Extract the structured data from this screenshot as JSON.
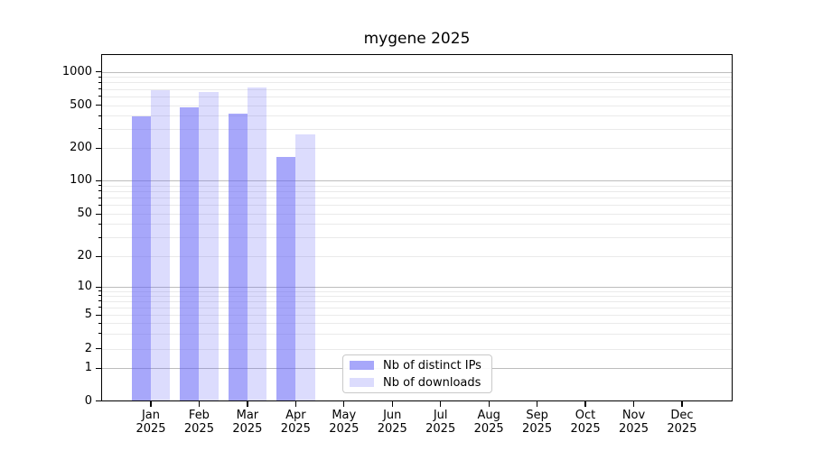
{
  "chart_data": {
    "type": "bar",
    "title": "mygene 2025",
    "categories": [
      "Jan 2025",
      "Feb 2025",
      "Mar 2025",
      "Apr 2025",
      "May 2025",
      "Jun 2025",
      "Jul 2025",
      "Aug 2025",
      "Sep 2025",
      "Oct 2025",
      "Nov 2025",
      "Dec 2025"
    ],
    "month_labels": [
      "Jan",
      "Feb",
      "Mar",
      "Apr",
      "May",
      "Jun",
      "Jul",
      "Aug",
      "Sep",
      "Oct",
      "Nov",
      "Dec"
    ],
    "year_label": "2025",
    "series": [
      {
        "name": "Nb of distinct IPs",
        "color": "rgba(95,95,245,0.55)",
        "values": [
          390,
          475,
          415,
          165,
          null,
          null,
          null,
          null,
          null,
          null,
          null,
          null
        ]
      },
      {
        "name": "Nb of downloads",
        "color": "rgba(95,95,245,0.22)",
        "values": [
          680,
          660,
          715,
          265,
          null,
          null,
          null,
          null,
          null,
          null,
          null,
          null
        ]
      }
    ],
    "y_axis": {
      "scale": "symlog",
      "ticks": [
        1000,
        500,
        200,
        100,
        50,
        20,
        10,
        5,
        2,
        1,
        0
      ],
      "major_grid_values": [
        1,
        10,
        100,
        1000
      ],
      "minor_grid_values": [
        2,
        3,
        4,
        5,
        6,
        7,
        8,
        9,
        20,
        30,
        40,
        50,
        60,
        70,
        80,
        90,
        200,
        300,
        400,
        500,
        600,
        700,
        800,
        900
      ],
      "ylim": [
        0,
        1400
      ]
    },
    "legend": {
      "position": "lower-center-inside"
    },
    "grid": {
      "horizontal": true,
      "vertical": false
    },
    "colors": {
      "distinct_ips_fill": "#a9a9f7",
      "downloads_fill": "#dbdbf9",
      "major_grid": "#bdbdbd",
      "minor_grid": "#eaeaea"
    }
  }
}
